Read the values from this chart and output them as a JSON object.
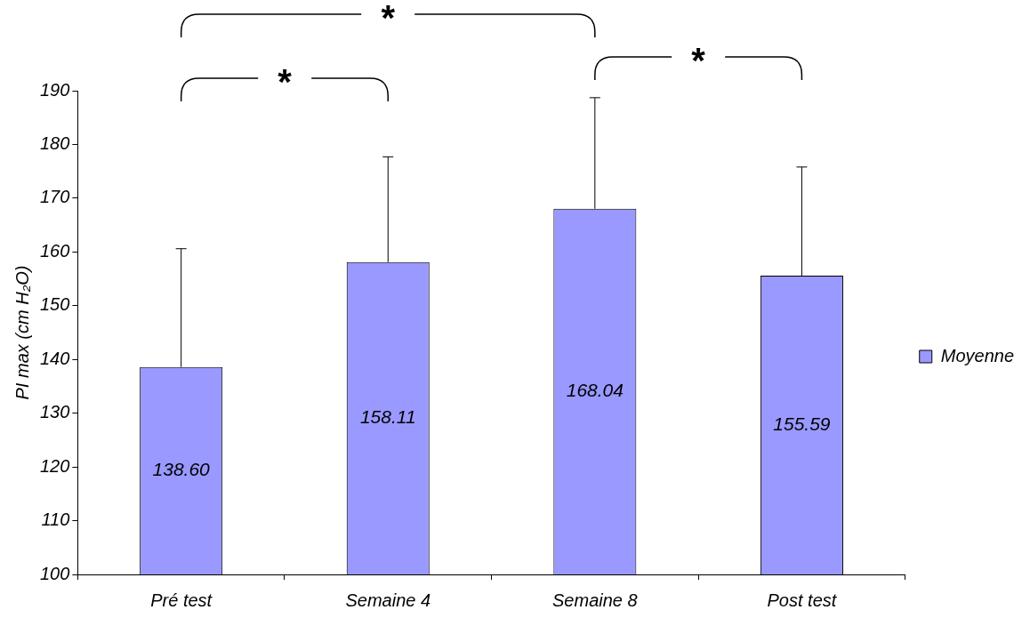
{
  "chart_data": {
    "type": "bar",
    "ylabel": "PI max (cm H₂O)",
    "categories": [
      "Pré test",
      "Semaine 4",
      "Semaine 8",
      "Post test"
    ],
    "series": [
      {
        "name": "Moyenne",
        "color": "#9999ff",
        "values": [
          138.6,
          158.11,
          168.04,
          155.59
        ],
        "value_labels": [
          "138.60",
          "158.11",
          "168.04",
          "155.59"
        ],
        "errors": [
          [
            138.6,
            160.6
          ],
          [
            158.11,
            177.7
          ],
          [
            168.04,
            188.7
          ],
          [
            155.59,
            175.8
          ]
        ]
      }
    ],
    "ylim": [
      100,
      190
    ],
    "yticks": [
      100,
      110,
      120,
      130,
      140,
      150,
      160,
      170,
      180,
      190
    ],
    "grid": false,
    "legend": "right",
    "annotations": [
      "*",
      "*",
      "*"
    ]
  }
}
